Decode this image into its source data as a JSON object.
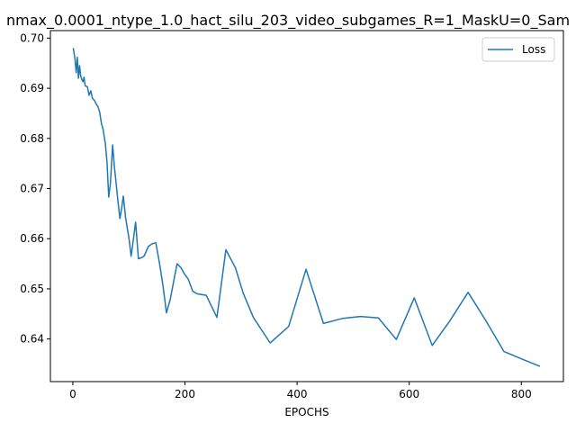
{
  "chart_data": {
    "type": "line",
    "title": "nmax_0.0001_ntype_1.0_hact_silu_203_video_subgames_R=1_MaskU=0_Sam",
    "xlabel": "EPOCHS",
    "ylabel": "",
    "xlim": [
      -40,
      875
    ],
    "ylim": [
      0.6315,
      0.7015
    ],
    "xticks": [
      0,
      200,
      400,
      600,
      800
    ],
    "yticks": [
      0.64,
      0.65,
      0.66,
      0.67,
      0.68,
      0.69,
      0.7
    ],
    "ytick_labels": [
      "0.64",
      "0.65",
      "0.66",
      "0.67",
      "0.68",
      "0.69",
      "0.70"
    ],
    "grid": false,
    "legend": "top-right",
    "series": [
      {
        "name": "Loss",
        "color": "#1f77b4",
        "x": [
          1,
          4,
          6,
          8,
          10,
          12,
          14,
          16,
          18,
          20,
          22,
          26,
          29,
          32,
          35,
          39,
          42,
          45,
          48,
          51,
          54,
          58,
          61,
          64,
          67,
          71,
          74,
          77,
          80,
          84,
          87,
          90,
          94,
          97,
          100,
          104,
          107,
          112,
          117,
          122,
          127,
          135,
          142,
          148,
          154,
          161,
          167,
          174,
          179,
          186,
          193,
          199,
          206,
          214,
          222,
          238,
          257,
          273,
          290,
          304,
          322,
          352,
          385,
          416,
          447,
          481,
          513,
          545,
          577,
          609,
          641,
          673,
          705,
          737,
          769,
          801,
          832
        ],
        "values": [
          0.6979,
          0.6957,
          0.6931,
          0.6962,
          0.692,
          0.6945,
          0.6925,
          0.6918,
          0.6913,
          0.6922,
          0.6905,
          0.6903,
          0.6886,
          0.6895,
          0.688,
          0.6875,
          0.6868,
          0.6863,
          0.6852,
          0.683,
          0.6818,
          0.679,
          0.6752,
          0.6683,
          0.671,
          0.6787,
          0.6745,
          0.6713,
          0.668,
          0.664,
          0.666,
          0.6685,
          0.6643,
          0.6622,
          0.6602,
          0.6565,
          0.659,
          0.6633,
          0.656,
          0.6562,
          0.6565,
          0.6585,
          0.659,
          0.6592,
          0.6555,
          0.6505,
          0.6452,
          0.648,
          0.651,
          0.655,
          0.6542,
          0.653,
          0.6519,
          0.6495,
          0.649,
          0.6487,
          0.6443,
          0.6578,
          0.6542,
          0.6491,
          0.6443,
          0.6392,
          0.6425,
          0.6539,
          0.6431,
          0.6441,
          0.6445,
          0.6442,
          0.6399,
          0.6482,
          0.6387,
          0.6437,
          0.6493,
          0.6436,
          0.6375,
          0.636,
          0.6346
        ]
      }
    ]
  }
}
